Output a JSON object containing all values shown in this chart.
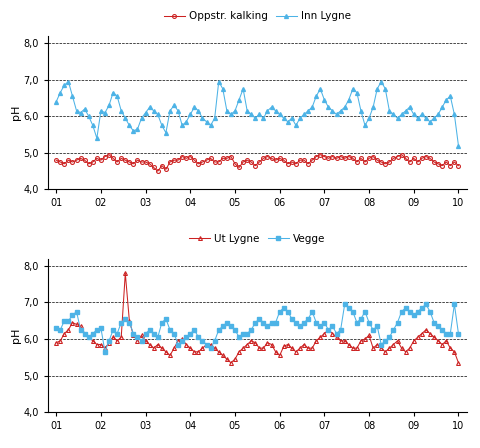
{
  "top_series1_label": "Oppstr. kalking",
  "top_series1_color": "#cc2222",
  "top_series1_marker": "o",
  "top_series2_label": "Inn Lygne",
  "top_series2_color": "#4db3e6",
  "top_series2_marker": "^",
  "bot_series1_label": "Ut Lygne",
  "bot_series1_color": "#cc2222",
  "bot_series1_marker": "^",
  "bot_series2_label": "Vegge",
  "bot_series2_color": "#4db3e6",
  "bot_series2_marker": "s",
  "ylabel": "pH",
  "ylim": [
    4.0,
    8.2
  ],
  "yticks": [
    4.0,
    5.0,
    6.0,
    7.0,
    8.0
  ],
  "ytick_labels": [
    "4,0",
    "5,0",
    "6,0",
    "7,0",
    "8,0"
  ],
  "xtick_labels": [
    "01",
    "02",
    "03",
    "04",
    "05",
    "06",
    "07",
    "08",
    "09",
    "10"
  ],
  "background_color": "#ffffff",
  "top_ph1": [
    4.8,
    4.75,
    4.7,
    4.8,
    4.75,
    4.8,
    4.85,
    4.8,
    4.7,
    4.75,
    4.85,
    4.8,
    4.9,
    4.95,
    4.85,
    4.75,
    4.85,
    4.8,
    4.75,
    4.7,
    4.8,
    4.75,
    4.75,
    4.7,
    4.6,
    4.5,
    4.65,
    4.55,
    4.75,
    4.8,
    4.8,
    4.9,
    4.85,
    4.9,
    4.8,
    4.7,
    4.75,
    4.8,
    4.85,
    4.75,
    4.75,
    4.85,
    4.85,
    4.9,
    4.7,
    4.6,
    4.75,
    4.8,
    4.75,
    4.65,
    4.75,
    4.85,
    4.9,
    4.85,
    4.8,
    4.85,
    4.8,
    4.7,
    4.75,
    4.7,
    4.8,
    4.8,
    4.7,
    4.8,
    4.9,
    4.95,
    4.9,
    4.85,
    4.9,
    4.85,
    4.9,
    4.85,
    4.9,
    4.85,
    4.75,
    4.85,
    4.75,
    4.85,
    4.9,
    4.8,
    4.75,
    4.7,
    4.75,
    4.85,
    4.9,
    4.95,
    4.85,
    4.75,
    4.85,
    4.75,
    4.85,
    4.9,
    4.85,
    4.75,
    4.7,
    4.65,
    4.75,
    4.65,
    4.75,
    4.65
  ],
  "top_ph2": [
    6.4,
    6.65,
    6.85,
    6.95,
    6.55,
    6.15,
    6.1,
    6.2,
    6.0,
    5.75,
    5.4,
    6.15,
    6.1,
    6.3,
    6.65,
    6.55,
    6.15,
    5.95,
    5.75,
    5.6,
    5.65,
    5.95,
    6.1,
    6.25,
    6.15,
    6.05,
    5.75,
    5.55,
    6.15,
    6.3,
    6.15,
    5.75,
    5.85,
    6.05,
    6.25,
    6.15,
    5.95,
    5.85,
    5.75,
    5.95,
    6.95,
    6.75,
    6.15,
    6.05,
    6.15,
    6.45,
    6.75,
    6.15,
    6.05,
    5.95,
    6.05,
    5.95,
    6.15,
    6.25,
    6.15,
    6.05,
    5.95,
    5.85,
    5.95,
    5.75,
    5.95,
    6.05,
    6.15,
    6.25,
    6.55,
    6.75,
    6.45,
    6.25,
    6.15,
    6.05,
    6.15,
    6.25,
    6.45,
    6.75,
    6.65,
    6.15,
    5.75,
    5.95,
    6.25,
    6.75,
    6.95,
    6.75,
    6.15,
    6.05,
    5.95,
    6.05,
    6.15,
    6.25,
    6.05,
    5.95,
    6.05,
    5.95,
    5.85,
    5.95,
    6.05,
    6.25,
    6.45,
    6.55,
    6.05,
    5.2
  ],
  "bot_ph1": [
    5.9,
    5.95,
    6.15,
    6.25,
    6.45,
    6.4,
    6.35,
    6.15,
    6.05,
    5.95,
    5.85,
    5.85,
    5.75,
    5.9,
    6.05,
    5.95,
    6.05,
    7.8,
    6.5,
    6.1,
    5.95,
    6.1,
    5.95,
    5.85,
    5.75,
    5.85,
    5.75,
    5.65,
    5.55,
    5.75,
    5.95,
    6.0,
    5.85,
    5.75,
    5.65,
    5.65,
    5.75,
    5.85,
    5.85,
    5.75,
    5.65,
    5.55,
    5.45,
    5.35,
    5.45,
    5.65,
    5.75,
    5.85,
    5.95,
    5.9,
    5.75,
    5.75,
    5.9,
    5.85,
    5.65,
    5.55,
    5.8,
    5.85,
    5.75,
    5.65,
    5.75,
    5.85,
    5.75,
    5.75,
    5.95,
    6.05,
    6.15,
    6.25,
    6.15,
    6.05,
    5.95,
    5.95,
    5.85,
    5.75,
    5.75,
    5.95,
    6.0,
    6.1,
    5.75,
    5.85,
    5.75,
    5.65,
    5.75,
    5.85,
    5.95,
    5.75,
    5.65,
    5.75,
    5.95,
    6.05,
    6.15,
    6.25,
    6.15,
    6.05,
    5.95,
    5.85,
    5.95,
    5.75,
    5.65,
    5.35
  ],
  "bot_ph2": [
    6.3,
    6.25,
    6.5,
    6.5,
    6.65,
    6.75,
    6.25,
    6.15,
    6.05,
    6.15,
    6.25,
    6.3,
    5.65,
    5.95,
    6.25,
    6.15,
    6.45,
    6.55,
    6.45,
    6.15,
    6.05,
    5.95,
    6.15,
    6.25,
    6.15,
    6.05,
    6.45,
    6.55,
    6.25,
    6.15,
    5.85,
    5.95,
    6.05,
    6.15,
    6.25,
    6.05,
    5.95,
    5.85,
    5.75,
    5.95,
    6.25,
    6.35,
    6.45,
    6.35,
    6.25,
    6.05,
    6.15,
    6.15,
    6.25,
    6.45,
    6.55,
    6.45,
    6.35,
    6.45,
    6.45,
    6.75,
    6.85,
    6.75,
    6.55,
    6.45,
    6.35,
    6.45,
    6.55,
    6.75,
    6.45,
    6.35,
    6.45,
    6.25,
    6.35,
    6.15,
    6.25,
    6.95,
    6.85,
    6.75,
    6.45,
    6.55,
    6.75,
    6.45,
    6.25,
    6.35,
    5.85,
    5.95,
    6.05,
    6.25,
    6.45,
    6.75,
    6.85,
    6.75,
    6.65,
    6.75,
    6.85,
    6.95,
    6.75,
    6.45,
    6.35,
    6.25,
    6.15,
    6.15,
    6.95,
    6.15
  ]
}
